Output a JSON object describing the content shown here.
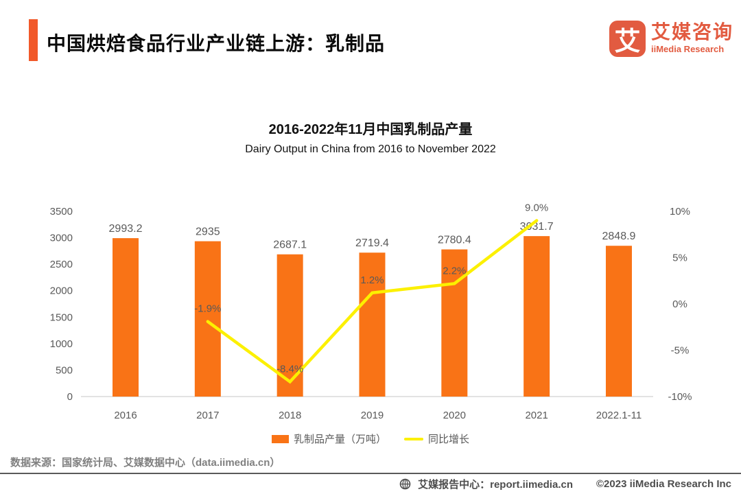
{
  "header": {
    "title": "中国烘焙食品行业产业链上游：乳制品"
  },
  "logo": {
    "icon_char": "艾",
    "name_cn": "艾媒咨询",
    "name_en": "iiMedia Research"
  },
  "chart": {
    "title_cn": "2016-2022年11月中国乳制品产量",
    "title_en": "Dairy Output in China from 2016 to November 2022"
  },
  "chart_data": {
    "type": "bar",
    "subtype": "combo-bar-line",
    "title": "2016-2022年11月中国乳制品产量",
    "subtitle": "Dairy Output in China from 2016 to November 2022",
    "categories": [
      "2016",
      "2017",
      "2018",
      "2019",
      "2020",
      "2021",
      "2022.1-11"
    ],
    "series": [
      {
        "name": "乳制品产量（万吨）",
        "type": "bar",
        "axis": "left",
        "values": [
          2993.2,
          2935,
          2687.1,
          2719.4,
          2780.4,
          3031.7,
          2848.9
        ],
        "labels": [
          "2993.2",
          "2935",
          "2687.1",
          "2719.4",
          "2780.4",
          "3031.7",
          "2848.9"
        ]
      },
      {
        "name": "同比增长",
        "type": "line",
        "axis": "right",
        "unit": "%",
        "values": [
          null,
          -1.9,
          -8.4,
          1.2,
          2.2,
          9.0,
          null
        ],
        "labels": [
          null,
          "-1.9%",
          "-8.4%",
          "1.2%",
          "2.2%",
          "9.0%",
          null
        ]
      }
    ],
    "left_axis": {
      "ticks": [
        3500,
        3000,
        2500,
        2000,
        1500,
        1000,
        500,
        0
      ],
      "min": 0,
      "max": 3500
    },
    "right_axis": {
      "ticks": [
        "10%",
        "5%",
        "0%",
        "-5%",
        "-10%"
      ],
      "tick_values": [
        10,
        5,
        0,
        -5,
        -10
      ],
      "min": -10,
      "max": 10
    },
    "grid": false,
    "legend_position": "bottom",
    "colors": {
      "bar": "#F97316",
      "line": "#FCF000",
      "axis_text": "#595959",
      "baseline": "#D9D9D9",
      "accent": "#F1592A",
      "logo": "#E25B40"
    }
  },
  "footer": {
    "source": "数据来源：国家统计局、艾媒数据中心（data.iimedia.cn）",
    "report_center": "艾媒报告中心：report.iimedia.cn",
    "copyright": "©2023 iiMedia Research Inc"
  }
}
